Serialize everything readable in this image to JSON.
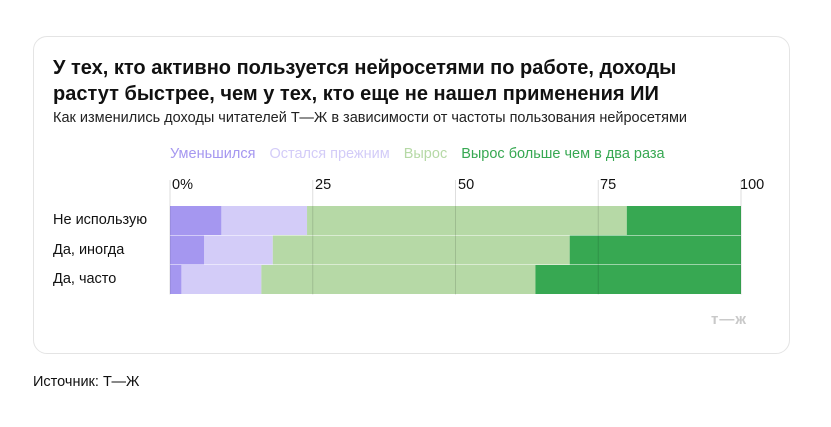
{
  "title": "У тех, кто активно пользуется нейросетями по работе, доходы растут быстрее, чем у тех, кто еще не нашел применения ИИ",
  "subtitle": "Как изменились доходы читателей Т—Ж в зависимости от частоты пользования нейросетями",
  "logo": "т—ж",
  "source": "Источник: Т—Ж",
  "chart_data": {
    "type": "bar",
    "orientation": "horizontal",
    "stacked": true,
    "categories": [
      "Не использую",
      "Да, иногда",
      "Да, часто"
    ],
    "series": [
      {
        "name": "Уменьшился",
        "color": "#a597f0",
        "values": [
          9,
          6,
          2
        ]
      },
      {
        "name": "Остался прежним",
        "color": "#d3ccf8",
        "values": [
          15,
          12,
          14
        ]
      },
      {
        "name": "Вырос",
        "color": "#b6d9a6",
        "values": [
          56,
          52,
          48
        ]
      },
      {
        "name": "Вырос больше чем в два раза",
        "color": "#37a852",
        "values": [
          20,
          30,
          36
        ]
      }
    ],
    "xlim": [
      0,
      100
    ],
    "ticks": [
      "0%",
      "25",
      "50",
      "75",
      "100"
    ],
    "tick_values": [
      0,
      25,
      50,
      75,
      100
    ],
    "grid": true,
    "legend_position": "top"
  }
}
